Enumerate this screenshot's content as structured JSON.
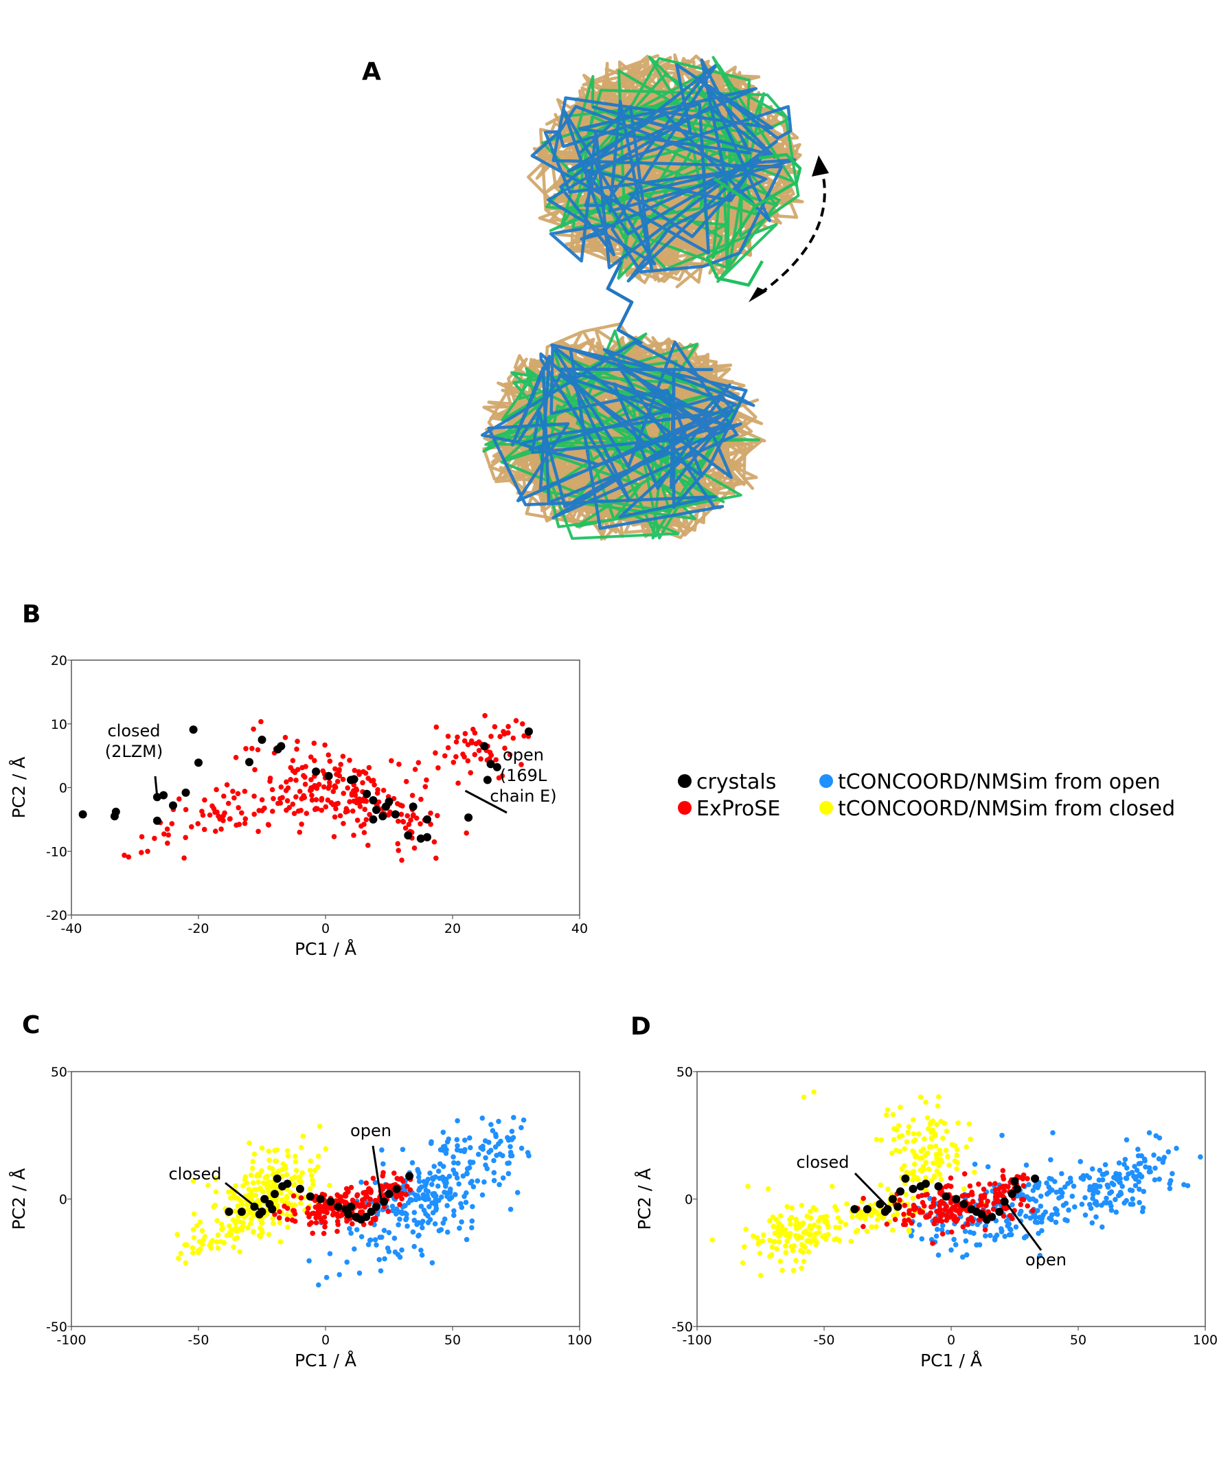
{
  "panels": {
    "A": "A",
    "B": "B",
    "C": "C",
    "D": "D"
  },
  "legend": [
    {
      "label": "crystals",
      "color": "#000000"
    },
    {
      "label": "ExProSE",
      "color": "#ff0000"
    },
    {
      "label": "tCONCOORD/NMSim from open",
      "color": "#1e90ff"
    },
    {
      "label": "tCONCOORD/NMSim from closed",
      "color": "#ffff00"
    }
  ],
  "structure": {
    "colors": {
      "tan": "#d2a86b",
      "blue": "#1f78c8",
      "green": "#1fc060"
    }
  },
  "chart_data": [
    {
      "id": "B",
      "type": "scatter",
      "xlabel": "PC1 / Å",
      "ylabel": "PC2 / Å",
      "xlim": [
        -40,
        40
      ],
      "ylim": [
        -20,
        20
      ],
      "xticks": [
        -40,
        -20,
        0,
        20,
        40
      ],
      "yticks": [
        -20,
        -10,
        0,
        10,
        20
      ],
      "annotations": [
        {
          "lines": [
            "closed",
            "(2LZM)"
          ],
          "point": [
            -26.5,
            -1.5
          ]
        },
        {
          "lines": [
            "open",
            "(169L",
            "chain E)"
          ],
          "point": [
            22,
            -0.5
          ]
        }
      ],
      "series": [
        {
          "name": "ExProSE",
          "color": "#ff0000",
          "clouds": [
            {
              "cx": -12,
              "cy": -3.5,
              "sx": 9,
              "sy": 2.3,
              "n": 90,
              "tilt": 0.25
            },
            {
              "cx": 1,
              "cy": 0.5,
              "sx": 5.5,
              "sy": 3,
              "n": 130,
              "tilt": -0.35
            },
            {
              "cx": 11,
              "cy": -4,
              "sx": 4,
              "sy": 2.3,
              "n": 50,
              "tilt": -0.2
            },
            {
              "cx": 23,
              "cy": 6,
              "sx": 4,
              "sy": 2.5,
              "n": 55,
              "tilt": 0.25
            }
          ],
          "points": [
            [
              -31,
              -10.9
            ],
            [
              -29,
              -10.2
            ],
            [
              -28,
              -10
            ],
            [
              -26,
              -5.5
            ],
            [
              12,
              -11.4
            ],
            [
              14,
              -9.5
            ],
            [
              30,
              10.5
            ],
            [
              31,
              10
            ],
            [
              28,
              8.8
            ]
          ]
        },
        {
          "name": "crystals",
          "color": "#000000",
          "points": [
            [
              -38.2,
              -4.2
            ],
            [
              -33.2,
              -4.5
            ],
            [
              -33,
              -3.8
            ],
            [
              -26.5,
              -5.2
            ],
            [
              -26.5,
              -1.5
            ],
            [
              -25.5,
              -1.2
            ],
            [
              -24,
              -2.8
            ],
            [
              -22,
              -0.8
            ],
            [
              -20.8,
              9.1
            ],
            [
              -20,
              3.9
            ],
            [
              -12,
              4
            ],
            [
              -10,
              7.5
            ],
            [
              -7.5,
              6
            ],
            [
              -7,
              6.5
            ],
            [
              -1.5,
              2.5
            ],
            [
              0.5,
              1.8
            ],
            [
              4,
              1.2
            ],
            [
              4.5,
              1.3
            ],
            [
              6.5,
              -1
            ],
            [
              7.5,
              -2
            ],
            [
              8,
              -3.5
            ],
            [
              7.5,
              -5
            ],
            [
              9,
              -4.5
            ],
            [
              9.5,
              -3
            ],
            [
              10,
              -2.2
            ],
            [
              11,
              -4.2
            ],
            [
              13,
              -7.5
            ],
            [
              13.8,
              -3
            ],
            [
              15,
              -8
            ],
            [
              16,
              -5
            ],
            [
              16,
              -7.8
            ],
            [
              22.5,
              -4.7
            ],
            [
              25,
              6.5
            ],
            [
              25.5,
              1.2
            ],
            [
              26,
              3.7
            ],
            [
              27,
              3.2
            ],
            [
              32,
              8.8
            ]
          ]
        }
      ]
    },
    {
      "id": "C",
      "type": "scatter",
      "xlabel": "PC1 / Å",
      "ylabel": "PC2 / Å",
      "xlim": [
        -100,
        100
      ],
      "ylim": [
        -50,
        50
      ],
      "xticks": [
        -100,
        -50,
        0,
        50,
        100
      ],
      "yticks": [
        -50,
        0,
        50
      ],
      "annotations": [
        {
          "lines": [
            "closed"
          ],
          "point": [
            -25,
            -5
          ]
        },
        {
          "lines": [
            "open"
          ],
          "point": [
            22,
            -1
          ]
        }
      ],
      "series": [
        {
          "name": "tCONCOORD/NMSim from open",
          "color": "#1e90ff",
          "clouds": [
            {
              "cx": 38,
              "cy": 0,
              "sx": 14,
              "sy": 9,
              "n": 240,
              "tilt": 0.45
            },
            {
              "cx": 65,
              "cy": 18,
              "sx": 8,
              "sy": 7,
              "n": 50,
              "tilt": 0.2
            }
          ],
          "points": [
            [
              74,
              32
            ],
            [
              78,
              31
            ],
            [
              80,
              17
            ],
            [
              77,
              28
            ],
            [
              42,
              -25
            ],
            [
              38,
              -22
            ],
            [
              30,
              -20
            ],
            [
              20,
              -18
            ],
            [
              72,
              10
            ]
          ]
        },
        {
          "name": "tCONCOORD/NMSim from closed",
          "color": "#ffff00",
          "clouds": [
            {
              "cx": -22,
              "cy": 2,
              "sx": 10,
              "sy": 8,
              "n": 230,
              "tilt": 0.35
            },
            {
              "cx": -42,
              "cy": -15,
              "sx": 7,
              "sy": 4,
              "n": 45,
              "tilt": 0.3
            }
          ],
          "points": [
            [
              -55,
              -25
            ],
            [
              -50,
              -21
            ],
            [
              -52,
              -12
            ],
            [
              -30,
              22
            ],
            [
              -25,
              20
            ],
            [
              -20,
              19
            ],
            [
              -48,
              -16
            ]
          ]
        },
        {
          "name": "ExProSE",
          "color": "#ff0000",
          "clouds": [
            {
              "cx": 5,
              "cy": -3,
              "sx": 11,
              "sy": 3.5,
              "n": 160,
              "tilt": 0.15
            },
            {
              "cx": 25,
              "cy": 4,
              "sx": 5,
              "sy": 3,
              "n": 45,
              "tilt": 0.2
            }
          ],
          "points": [
            [
              33,
              8
            ],
            [
              -15,
              -8
            ],
            [
              -20,
              -6
            ]
          ]
        },
        {
          "name": "crystals",
          "color": "#000000",
          "points": [
            [
              -38,
              -5
            ],
            [
              -33,
              -5
            ],
            [
              -28,
              -3
            ],
            [
              -26,
              -6
            ],
            [
              -25,
              -5
            ],
            [
              -24,
              0
            ],
            [
              -22,
              -2
            ],
            [
              -21,
              -4
            ],
            [
              -20,
              2
            ],
            [
              -19,
              8
            ],
            [
              -17,
              5
            ],
            [
              -15,
              6
            ],
            [
              -10,
              4
            ],
            [
              -6,
              1
            ],
            [
              -2,
              0
            ],
            [
              2,
              -1
            ],
            [
              5,
              -3
            ],
            [
              8,
              -4
            ],
            [
              9,
              -6
            ],
            [
              10,
              -3
            ],
            [
              12,
              -7
            ],
            [
              14,
              -8
            ],
            [
              16,
              -7
            ],
            [
              18,
              -5
            ],
            [
              20,
              -3
            ],
            [
              23,
              -1
            ],
            [
              25,
              2
            ],
            [
              28,
              4
            ],
            [
              33,
              9
            ]
          ]
        }
      ]
    },
    {
      "id": "D",
      "type": "scatter",
      "xlabel": "PC1 / Å",
      "ylabel": "PC2 / Å",
      "xlim": [
        -100,
        100
      ],
      "ylim": [
        -50,
        50
      ],
      "xticks": [
        -100,
        -50,
        0,
        50,
        100
      ],
      "yticks": [
        -50,
        0,
        50
      ],
      "annotations": [
        {
          "lines": [
            "closed"
          ],
          "point": [
            -25,
            -3
          ]
        },
        {
          "lines": [
            "open"
          ],
          "point": [
            22,
            -2
          ]
        }
      ],
      "series": [
        {
          "name": "tCONCOORD/NMSim from open",
          "color": "#1e90ff",
          "clouds": [
            {
              "cx": 40,
              "cy": 0,
              "sx": 22,
              "sy": 7,
              "n": 230,
              "tilt": 0.18
            },
            {
              "cx": 5,
              "cy": -10,
              "sx": 10,
              "sy": 5,
              "n": 55,
              "tilt": 0
            },
            {
              "cx": 75,
              "cy": 10,
              "sx": 7,
              "sy": 5,
              "n": 40,
              "tilt": 0.2
            }
          ],
          "points": [
            [
              87,
              10
            ],
            [
              86,
              6
            ],
            [
              78,
              26
            ],
            [
              82,
              24
            ],
            [
              20,
              25
            ],
            [
              40,
              26
            ],
            [
              -5,
              -22
            ],
            [
              0,
              -20
            ],
            [
              10,
              -18
            ]
          ]
        },
        {
          "name": "tCONCOORD/NMSim from closed",
          "color": "#ffff00",
          "clouds": [
            {
              "cx": -60,
              "cy": -13,
              "sx": 9,
              "sy": 5,
              "n": 130,
              "tilt": 0.15
            },
            {
              "cx": -30,
              "cy": -6,
              "sx": 9,
              "sy": 4,
              "n": 60,
              "tilt": 0.15
            },
            {
              "cx": -10,
              "cy": 17,
              "sx": 9,
              "sy": 9,
              "n": 120,
              "tilt": 0.1
            }
          ],
          "points": [
            [
              -58,
              40
            ],
            [
              -54,
              42
            ],
            [
              -94,
              -16
            ],
            [
              -75,
              -30
            ],
            [
              -82,
              -25
            ],
            [
              -80,
              5
            ],
            [
              -72,
              4
            ],
            [
              -62,
              -28
            ],
            [
              -12,
              40
            ],
            [
              -10,
              38
            ],
            [
              -8,
              30
            ],
            [
              -25,
              35
            ],
            [
              -20,
              36
            ]
          ]
        },
        {
          "name": "ExProSE",
          "color": "#ff0000",
          "clouds": [
            {
              "cx": 2,
              "cy": -3,
              "sx": 12,
              "sy": 4,
              "n": 170,
              "tilt": 0.1
            },
            {
              "cx": 22,
              "cy": 5,
              "sx": 4,
              "sy": 3,
              "n": 35,
              "tilt": 0.2
            }
          ],
          "points": [
            [
              -18,
              -10
            ],
            [
              -22,
              -8
            ],
            [
              30,
              8
            ]
          ]
        },
        {
          "name": "crystals",
          "color": "#000000",
          "points": [
            [
              -38,
              -4
            ],
            [
              -33,
              -4
            ],
            [
              -28,
              -2
            ],
            [
              -26,
              -5
            ],
            [
              -25,
              -4
            ],
            [
              -23,
              0
            ],
            [
              -21,
              -3
            ],
            [
              -20,
              3
            ],
            [
              -18,
              8
            ],
            [
              -15,
              4
            ],
            [
              -12,
              5
            ],
            [
              -10,
              6
            ],
            [
              -5,
              5
            ],
            [
              -2,
              1
            ],
            [
              2,
              0
            ],
            [
              5,
              -2
            ],
            [
              8,
              -4
            ],
            [
              10,
              -5
            ],
            [
              12,
              -6
            ],
            [
              14,
              -8
            ],
            [
              16,
              -7
            ],
            [
              19,
              -5
            ],
            [
              21,
              -1
            ],
            [
              24,
              2
            ],
            [
              26,
              4
            ],
            [
              25,
              7
            ],
            [
              33,
              8
            ]
          ]
        }
      ]
    }
  ]
}
